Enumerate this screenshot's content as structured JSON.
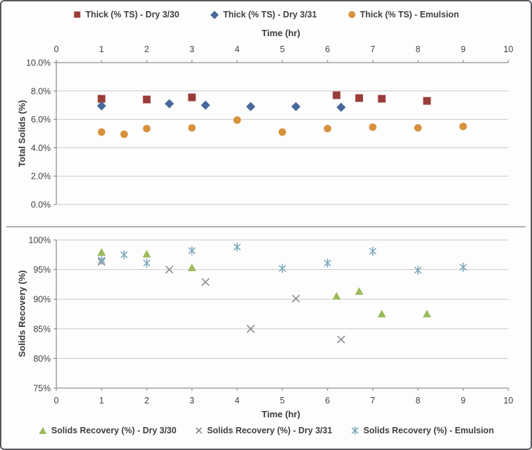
{
  "page": {
    "background": "#fdfdfd",
    "frame_border_color": "#57575c",
    "gridline_color": "#c9c9c9",
    "axis_color": "#8f8f8f",
    "text_color": "#404040"
  },
  "chart_data": [
    {
      "type": "scatter",
      "title": "",
      "xlabel": "Time (hr)",
      "ylabel": "Total Solids (%)",
      "xlim": [
        0,
        10
      ],
      "x_ticks": [
        0,
        1,
        2,
        3,
        4,
        5,
        6,
        7,
        8,
        9,
        10
      ],
      "ylim": [
        0,
        10
      ],
      "y_ticks": [
        0,
        2,
        4,
        6,
        8,
        10
      ],
      "y_tick_labels": [
        "0.0%",
        "2.0%",
        "4.0%",
        "6.0%",
        "8.0%",
        "10.0%"
      ],
      "x_axis_position": "top",
      "grid": true,
      "legend_position": "top",
      "series": [
        {
          "name": "Thick (% TS) - Dry 3/30",
          "marker": "square",
          "color": "#9a3c38",
          "points": [
            [
              1,
              7.45
            ],
            [
              2,
              7.4
            ],
            [
              3,
              7.55
            ],
            [
              6.2,
              7.7
            ],
            [
              6.7,
              7.5
            ],
            [
              7.2,
              7.45
            ],
            [
              8.2,
              7.3
            ]
          ]
        },
        {
          "name": "Thick (% TS) - Dry 3/31",
          "marker": "diamond",
          "color": "#47689b",
          "points": [
            [
              1,
              6.95
            ],
            [
              2.5,
              7.1
            ],
            [
              3.3,
              7.0
            ],
            [
              4.3,
              6.9
            ],
            [
              5.3,
              6.9
            ],
            [
              6.3,
              6.85
            ]
          ]
        },
        {
          "name": "Thick (% TS) - Emulsion",
          "marker": "circle",
          "color": "#d8913c",
          "points": [
            [
              1,
              5.1
            ],
            [
              1.5,
              4.95
            ],
            [
              2,
              5.35
            ],
            [
              3,
              5.4
            ],
            [
              4,
              5.95
            ],
            [
              5,
              5.1
            ],
            [
              6,
              5.35
            ],
            [
              7,
              5.45
            ],
            [
              8,
              5.4
            ],
            [
              9,
              5.5
            ]
          ]
        }
      ]
    },
    {
      "type": "scatter",
      "title": "",
      "xlabel": "Time (hr)",
      "ylabel": "Solids Recovery (%)",
      "xlim": [
        0,
        10
      ],
      "x_ticks": [
        0,
        1,
        2,
        3,
        4,
        5,
        6,
        7,
        8,
        9,
        10
      ],
      "ylim": [
        75,
        100
      ],
      "y_ticks": [
        75,
        80,
        85,
        90,
        95,
        100
      ],
      "y_tick_labels": [
        "75%",
        "80%",
        "85%",
        "90%",
        "95%",
        "100%"
      ],
      "x_axis_position": "bottom",
      "grid": true,
      "legend_position": "bottom",
      "series": [
        {
          "name": "Solids Recovery (%) - Dry 3/30",
          "marker": "triangle",
          "color": "#9bbb59",
          "points": [
            [
              1,
              97.9
            ],
            [
              2,
              97.6
            ],
            [
              3,
              95.3
            ],
            [
              6.2,
              90.5
            ],
            [
              6.7,
              91.3
            ],
            [
              7.2,
              87.5
            ],
            [
              8.2,
              87.5
            ]
          ]
        },
        {
          "name": "Solids Recovery (%) - Dry 3/31",
          "marker": "x",
          "color": "#8a8a94",
          "points": [
            [
              1,
              96.3
            ],
            [
              2.5,
              95.0
            ],
            [
              3.3,
              92.9
            ],
            [
              4.3,
              85.0
            ],
            [
              5.3,
              90.1
            ],
            [
              6.3,
              83.2
            ]
          ]
        },
        {
          "name": "Solids Recovery (%) - Emulsion",
          "marker": "star",
          "color": "#7fa9be",
          "points": [
            [
              1,
              96.6
            ],
            [
              1.5,
              97.5
            ],
            [
              2,
              96.1
            ],
            [
              3,
              98.2
            ],
            [
              4,
              98.8
            ],
            [
              5,
              95.2
            ],
            [
              6,
              96.1
            ],
            [
              7,
              98.1
            ],
            [
              8,
              94.9
            ],
            [
              9,
              95.4
            ]
          ]
        }
      ]
    }
  ]
}
